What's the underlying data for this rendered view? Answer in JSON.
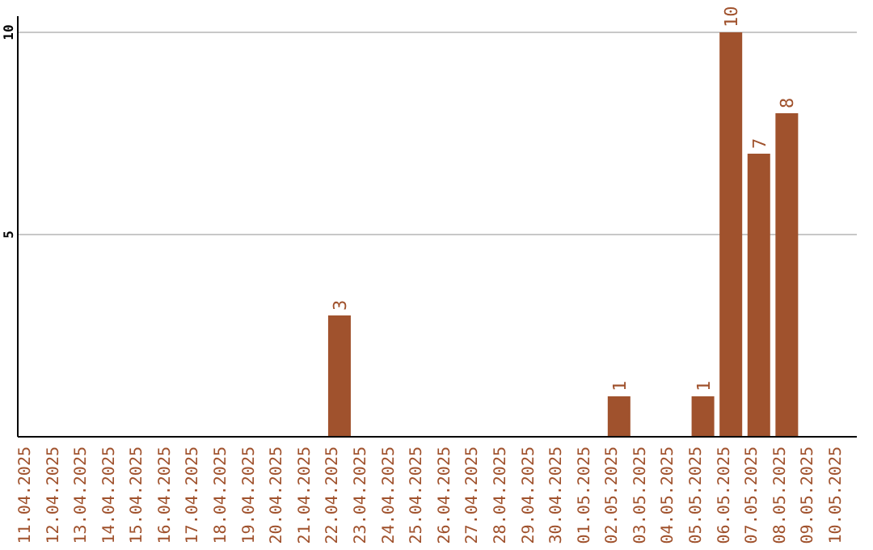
{
  "chart_data": {
    "type": "bar",
    "categories": [
      "11.04.2025",
      "12.04.2025",
      "13.04.2025",
      "14.04.2025",
      "15.04.2025",
      "16.04.2025",
      "17.04.2025",
      "18.04.2025",
      "19.04.2025",
      "20.04.2025",
      "21.04.2025",
      "22.04.2025",
      "23.04.2025",
      "24.04.2025",
      "25.04.2025",
      "26.04.2025",
      "27.04.2025",
      "28.04.2025",
      "29.04.2025",
      "30.04.2025",
      "01.05.2025",
      "02.05.2025",
      "03.05.2025",
      "04.05.2025",
      "05.05.2025",
      "06.05.2025",
      "07.05.2025",
      "08.05.2025",
      "09.05.2025",
      "10.05.2025"
    ],
    "values": [
      0,
      0,
      0,
      0,
      0,
      0,
      0,
      0,
      0,
      0,
      0,
      3,
      0,
      0,
      0,
      0,
      0,
      0,
      0,
      0,
      0,
      1,
      0,
      0,
      1,
      10,
      7,
      8,
      0,
      0
    ],
    "value_labels": [
      null,
      null,
      null,
      null,
      null,
      null,
      null,
      null,
      null,
      null,
      null,
      "3",
      null,
      null,
      null,
      null,
      null,
      null,
      null,
      null,
      null,
      "1",
      null,
      null,
      "1",
      "10",
      "7",
      "8",
      null,
      null
    ],
    "color": "#a0522d",
    "ylim": [
      0,
      10.4
    ],
    "yticks": [
      5,
      10
    ],
    "grid": "y"
  }
}
